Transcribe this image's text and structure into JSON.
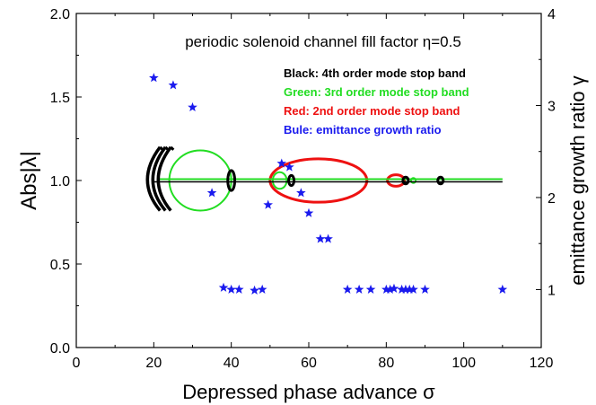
{
  "chart_data": {
    "type": "scatter",
    "title": "periodic solenoid channel fill factor η=0.5",
    "xlabel": "Depressed phase advance σ",
    "ylabel_left": "Abs|λ|",
    "ylabel_right": "emittance growth ratio γ",
    "xlim": [
      0,
      120
    ],
    "ylim_left": [
      0.0,
      2.0
    ],
    "ylim_right": [
      0.37,
      4.0
    ],
    "xticks": [
      0,
      20,
      40,
      60,
      80,
      100,
      120
    ],
    "yticks_left": [
      0.0,
      0.5,
      1.0,
      1.5,
      2.0
    ],
    "yticks_left_labels": [
      "0.0",
      "0.5",
      "1.0",
      "1.5",
      "2.0"
    ],
    "yticks_right": [
      1,
      2,
      3,
      4
    ],
    "legend_placement": "top-right",
    "legend": [
      {
        "label": "Black:  4th order mode stop band",
        "color": "#000000"
      },
      {
        "label": "Green: 3rd order mode stop band",
        "color": "#22dd22"
      },
      {
        "label": "Red:    2nd order mode stop band",
        "color": "#ee1111"
      },
      {
        "label": "Bule:    emittance growth ratio",
        "color": "#1a1aee"
      }
    ],
    "series": [
      {
        "name": "Black: 4th order mode stop band",
        "color": "#000000",
        "baseline": {
          "x": [
            20,
            110
          ],
          "y": 1.0
        },
        "bands": [
          {
            "kind": "arc",
            "center_x": 23,
            "half_width_x": 5,
            "y_min": 0.82,
            "y_max": 1.2,
            "count": 3
          },
          {
            "kind": "loop",
            "center_x": 40,
            "half_width_x": 0.9,
            "y_min": 0.94,
            "y_max": 1.06
          },
          {
            "kind": "loop",
            "center_x": 55.5,
            "half_width_x": 0.7,
            "y_min": 0.97,
            "y_max": 1.03
          },
          {
            "kind": "loop",
            "center_x": 85,
            "half_width_x": 0.7,
            "y_min": 0.98,
            "y_max": 1.02
          },
          {
            "kind": "loop",
            "center_x": 94,
            "half_width_x": 0.7,
            "y_min": 0.98,
            "y_max": 1.02
          }
        ]
      },
      {
        "name": "Green: 3rd order mode stop band",
        "color": "#22dd22",
        "baseline": {
          "x": [
            21,
            110
          ],
          "y": 1.0
        },
        "bands": [
          {
            "kind": "loop",
            "center_x": 32,
            "half_width_x": 8,
            "y_min": 0.82,
            "y_max": 1.18
          },
          {
            "kind": "loop",
            "center_x": 52.5,
            "half_width_x": 1.8,
            "y_min": 0.95,
            "y_max": 1.05
          },
          {
            "kind": "loop",
            "center_x": 87,
            "half_width_x": 0.6,
            "y_min": 0.985,
            "y_max": 1.015
          }
        ]
      },
      {
        "name": "Red: 2nd order mode stop band",
        "color": "#ee1111",
        "bands": [
          {
            "kind": "loop",
            "center_x": 62.5,
            "half_width_x": 12.5,
            "y_min": 0.87,
            "y_max": 1.13
          },
          {
            "kind": "loop",
            "center_x": 82.5,
            "half_width_x": 2.2,
            "y_min": 0.966,
            "y_max": 1.034
          }
        ]
      },
      {
        "name": "Bule: emittance growth ratio",
        "color": "#1a1aee",
        "axis": "right",
        "x": [
          20,
          25,
          30,
          35,
          38,
          40,
          42,
          46,
          48,
          49.5,
          53,
          55,
          58,
          60,
          63,
          65,
          70,
          73,
          76,
          80,
          81,
          82,
          84,
          85,
          86,
          87,
          90,
          110
        ],
        "y": [
          3.3,
          3.22,
          2.98,
          2.05,
          1.02,
          1.0,
          1.0,
          0.99,
          1.0,
          1.92,
          2.37,
          2.33,
          2.05,
          1.83,
          1.55,
          1.55,
          1.0,
          1.0,
          1.0,
          1.0,
          1.0,
          1.01,
          1.0,
          1.0,
          1.0,
          1.0,
          1.0,
          1.0
        ]
      }
    ]
  }
}
